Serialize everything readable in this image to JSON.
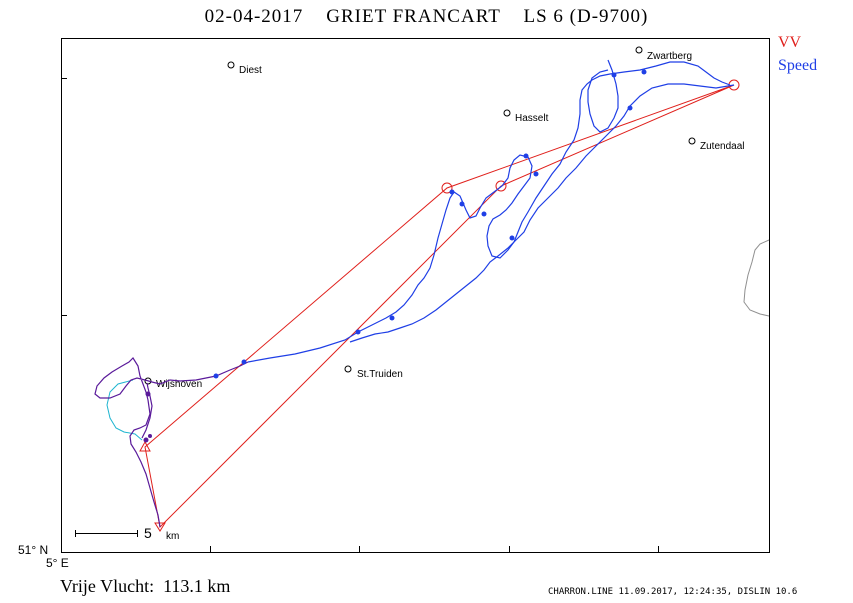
{
  "header": {
    "title": "02-04-2017    GRIET FRANCART    LS 6 (D-9700)"
  },
  "legend": {
    "vv_label": "VV",
    "speed_label": "Speed",
    "vv_color": "#e0201c",
    "speed_color": "#1f3fe6"
  },
  "axes": {
    "lat_label": "51° N",
    "lon_label": "5° E"
  },
  "towns": [
    {
      "name": "Diest"
    },
    {
      "name": "Zwartberg"
    },
    {
      "name": "Hasselt"
    },
    {
      "name": "Zutendaal"
    },
    {
      "name": "Wijshoven"
    },
    {
      "name": "St.Truiden"
    }
  ],
  "scale": {
    "value": "5",
    "unit": "km"
  },
  "summary": {
    "distance": "Vrije Vlucht:  113.1 km"
  },
  "footer": {
    "text": "CHARRON.LINE 11.09.2017, 12:24:35, DISLIN 10.6"
  }
}
